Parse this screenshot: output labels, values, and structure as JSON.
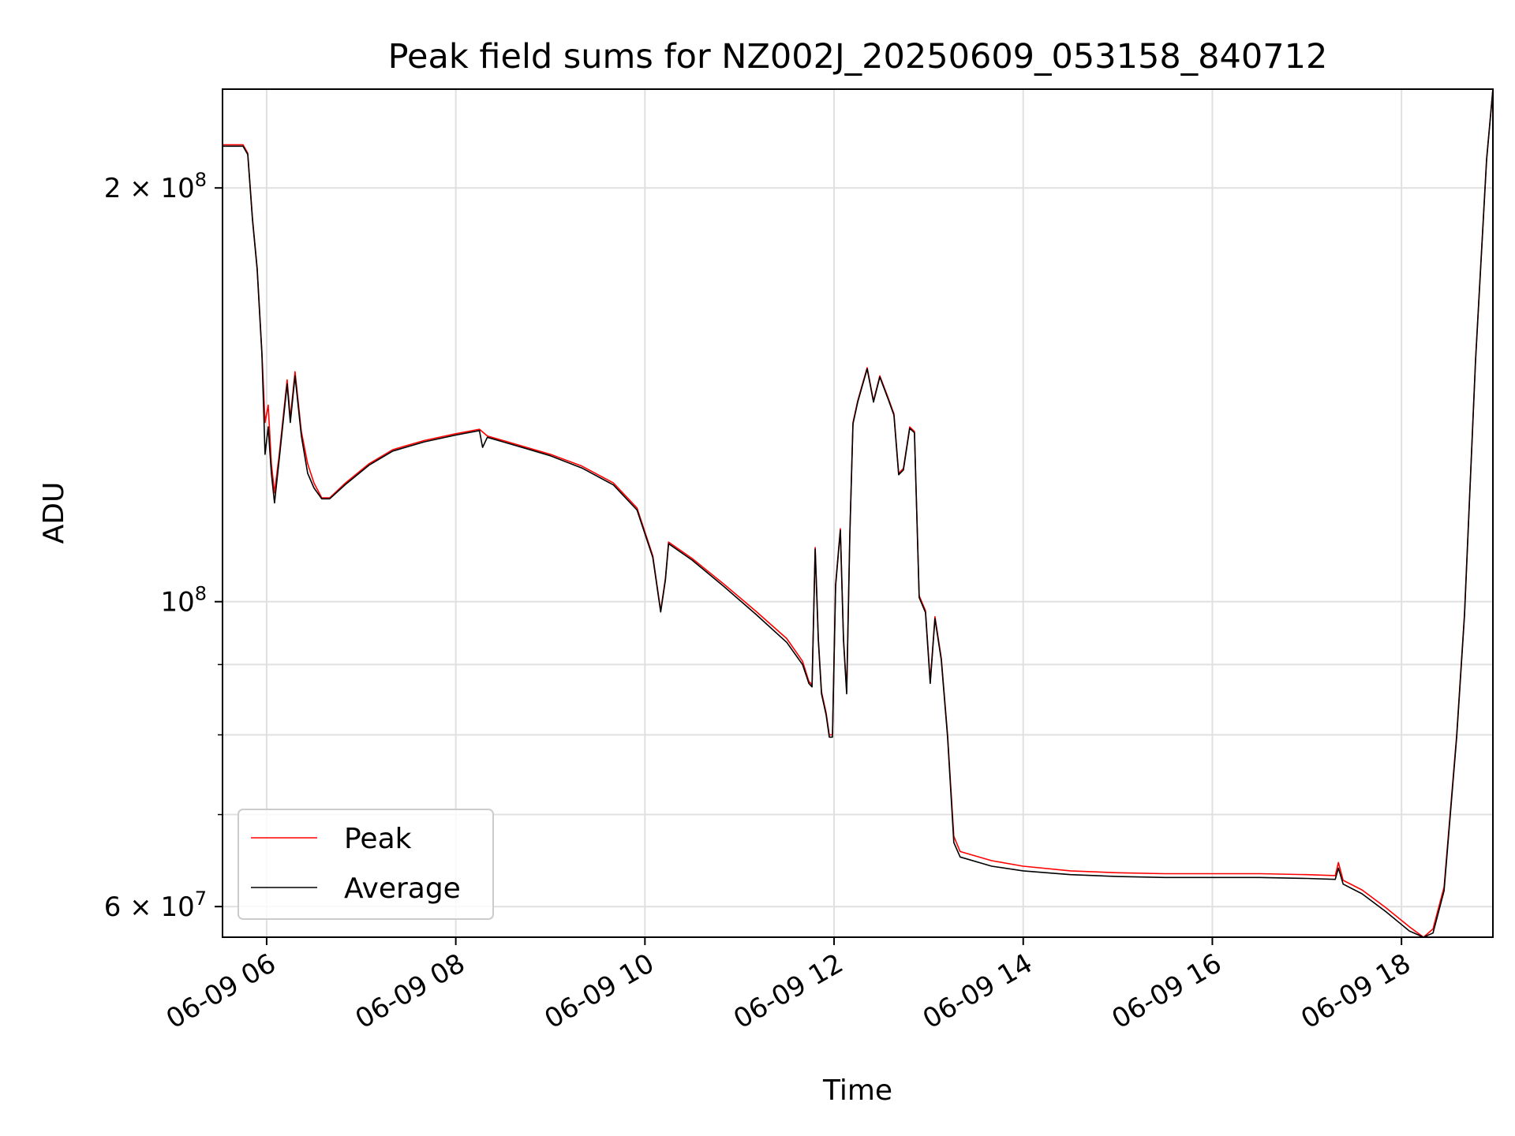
{
  "chart_data": {
    "type": "line",
    "title": "Peak field sums for NZ002J_20250609_053158_840712",
    "xlabel": "Time",
    "ylabel": "ADU",
    "y_scale": "log",
    "grid": true,
    "legend_position": "bottom-left",
    "xlim": [
      "06-09 05:32",
      "06-09 18:58"
    ],
    "ylim": [
      57000000,
      236000000
    ],
    "x_ticks": [
      "06-09 06",
      "06-09 08",
      "06-09 10",
      "06-09 12",
      "06-09 14",
      "06-09 16",
      "06-09 18"
    ],
    "y_ticks": [
      {
        "value": 200000000,
        "base": "2 × 10",
        "exp": "8"
      },
      {
        "value": 100000000,
        "base": "10",
        "exp": "8"
      },
      {
        "value": 60000000,
        "base": "6 × 10",
        "exp": "7"
      }
    ],
    "y_minor_ticks": [
      70000000,
      80000000,
      90000000
    ],
    "series": [
      {
        "name": "Peak",
        "color": "#ff0000",
        "points": [
          [
            "06-09 05:32",
            215000000
          ],
          [
            "06-09 05:45",
            215000000
          ],
          [
            "06-09 05:48",
            212000000
          ],
          [
            "06-09 05:51",
            190000000
          ],
          [
            "06-09 05:54",
            175000000
          ],
          [
            "06-09 05:57",
            152000000
          ],
          [
            "06-09 05:59",
            135000000
          ],
          [
            "06-09 06:01",
            139000000
          ],
          [
            "06-09 06:03",
            126000000
          ],
          [
            "06-09 06:05",
            120000000
          ],
          [
            "06-09 06:08",
            128000000
          ],
          [
            "06-09 06:11",
            138000000
          ],
          [
            "06-09 06:13",
            145000000
          ],
          [
            "06-09 06:15",
            136000000
          ],
          [
            "06-09 06:18",
            147000000
          ],
          [
            "06-09 06:22",
            133000000
          ],
          [
            "06-09 06:26",
            126000000
          ],
          [
            "06-09 06:30",
            122000000
          ],
          [
            "06-09 06:35",
            119000000
          ],
          [
            "06-09 06:40",
            119000000
          ],
          [
            "06-09 06:50",
            122000000
          ],
          [
            "06-09 07:05",
            126000000
          ],
          [
            "06-09 07:20",
            129000000
          ],
          [
            "06-09 07:40",
            131000000
          ],
          [
            "06-09 08:00",
            132500000
          ],
          [
            "06-09 08:15",
            133500000
          ],
          [
            "06-09 08:20",
            132000000
          ],
          [
            "06-09 08:30",
            131000000
          ],
          [
            "06-09 08:45",
            129500000
          ],
          [
            "06-09 09:00",
            128000000
          ],
          [
            "06-09 09:20",
            125500000
          ],
          [
            "06-09 09:40",
            122000000
          ],
          [
            "06-09 09:55",
            117000000
          ],
          [
            "06-09 10:05",
            108000000
          ],
          [
            "06-09 10:10",
            98500000
          ],
          [
            "06-09 10:13",
            104000000
          ],
          [
            "06-09 10:15",
            110500000
          ],
          [
            "06-09 10:30",
            107500000
          ],
          [
            "06-09 10:50",
            103000000
          ],
          [
            "06-09 11:10",
            98500000
          ],
          [
            "06-09 11:30",
            94000000
          ],
          [
            "06-09 11:40",
            90500000
          ],
          [
            "06-09 11:44",
            87500000
          ],
          [
            "06-09 11:46",
            87000000
          ],
          [
            "06-09 11:48",
            109500000
          ],
          [
            "06-09 11:50",
            94000000
          ],
          [
            "06-09 11:52",
            86000000
          ],
          [
            "06-09 11:55",
            83000000
          ],
          [
            "06-09 11:57",
            80000000
          ],
          [
            "06-09 11:59",
            80000000
          ],
          [
            "06-09 12:01",
            103000000
          ],
          [
            "06-09 12:04",
            113000000
          ],
          [
            "06-09 12:06",
            94000000
          ],
          [
            "06-09 12:08",
            86000000
          ],
          [
            "06-09 12:10",
            112000000
          ],
          [
            "06-09 12:12",
            135000000
          ],
          [
            "06-09 12:15",
            140000000
          ],
          [
            "06-09 12:18",
            144000000
          ],
          [
            "06-09 12:21",
            148000000
          ],
          [
            "06-09 12:25",
            140000000
          ],
          [
            "06-09 12:29",
            146000000
          ],
          [
            "06-09 12:34",
            141000000
          ],
          [
            "06-09 12:38",
            137000000
          ],
          [
            "06-09 12:41",
            124000000
          ],
          [
            "06-09 12:44",
            125000000
          ],
          [
            "06-09 12:48",
            134000000
          ],
          [
            "06-09 12:51",
            133000000
          ],
          [
            "06-09 12:54",
            101000000
          ],
          [
            "06-09 12:58",
            98500000
          ],
          [
            "06-09 13:01",
            87500000
          ],
          [
            "06-09 13:04",
            97500000
          ],
          [
            "06-09 13:08",
            91000000
          ],
          [
            "06-09 13:12",
            80000000
          ],
          [
            "06-09 13:16",
            67500000
          ],
          [
            "06-09 13:20",
            65800000
          ],
          [
            "06-09 13:40",
            64800000
          ],
          [
            "06-09 14:00",
            64200000
          ],
          [
            "06-09 14:30",
            63700000
          ],
          [
            "06-09 15:00",
            63500000
          ],
          [
            "06-09 15:30",
            63400000
          ],
          [
            "06-09 16:00",
            63400000
          ],
          [
            "06-09 16:30",
            63400000
          ],
          [
            "06-09 17:00",
            63300000
          ],
          [
            "06-09 17:18",
            63200000
          ],
          [
            "06-09 17:20",
            64600000
          ],
          [
            "06-09 17:23",
            62700000
          ],
          [
            "06-09 17:35",
            61700000
          ],
          [
            "06-09 17:50",
            59900000
          ],
          [
            "06-09 18:05",
            58000000
          ],
          [
            "06-09 18:14",
            56900000
          ],
          [
            "06-09 18:20",
            57800000
          ],
          [
            "06-09 18:27",
            62000000
          ],
          [
            "06-09 18:35",
            80000000
          ],
          [
            "06-09 18:40",
            98000000
          ],
          [
            "06-09 18:47",
            150000000
          ],
          [
            "06-09 18:54",
            210000000
          ],
          [
            "06-09 18:58",
            236000000
          ]
        ]
      },
      {
        "name": "Average",
        "color": "#000000",
        "points": [
          [
            "06-09 05:32",
            214500000
          ],
          [
            "06-09 05:45",
            214500000
          ],
          [
            "06-09 05:48",
            211500000
          ],
          [
            "06-09 05:51",
            189500000
          ],
          [
            "06-09 05:54",
            174500000
          ],
          [
            "06-09 05:57",
            151500000
          ],
          [
            "06-09 05:59",
            128000000
          ],
          [
            "06-09 06:01",
            134000000
          ],
          [
            "06-09 06:03",
            124000000
          ],
          [
            "06-09 06:05",
            118000000
          ],
          [
            "06-09 06:08",
            127000000
          ],
          [
            "06-09 06:11",
            137000000
          ],
          [
            "06-09 06:13",
            144000000
          ],
          [
            "06-09 06:15",
            135000000
          ],
          [
            "06-09 06:18",
            146000000
          ],
          [
            "06-09 06:22",
            132000000
          ],
          [
            "06-09 06:26",
            124000000
          ],
          [
            "06-09 06:30",
            121000000
          ],
          [
            "06-09 06:35",
            118800000
          ],
          [
            "06-09 06:40",
            118800000
          ],
          [
            "06-09 06:50",
            121700000
          ],
          [
            "06-09 07:05",
            125700000
          ],
          [
            "06-09 07:20",
            128700000
          ],
          [
            "06-09 07:40",
            130700000
          ],
          [
            "06-09 08:00",
            132200000
          ],
          [
            "06-09 08:15",
            133200000
          ],
          [
            "06-09 08:17",
            129500000
          ],
          [
            "06-09 08:20",
            131700000
          ],
          [
            "06-09 08:30",
            130700000
          ],
          [
            "06-09 08:45",
            129200000
          ],
          [
            "06-09 09:00",
            127700000
          ],
          [
            "06-09 09:20",
            125100000
          ],
          [
            "06-09 09:40",
            121600000
          ],
          [
            "06-09 09:55",
            116600000
          ],
          [
            "06-09 10:05",
            107700000
          ],
          [
            "06-09 10:10",
            98300000
          ],
          [
            "06-09 10:13",
            103700000
          ],
          [
            "06-09 10:15",
            110200000
          ],
          [
            "06-09 10:30",
            107200000
          ],
          [
            "06-09 10:50",
            102600000
          ],
          [
            "06-09 11:10",
            98000000
          ],
          [
            "06-09 11:30",
            93400000
          ],
          [
            "06-09 11:40",
            90000000
          ],
          [
            "06-09 11:44",
            87200000
          ],
          [
            "06-09 11:46",
            86700000
          ],
          [
            "06-09 11:48",
            109200000
          ],
          [
            "06-09 11:50",
            93700000
          ],
          [
            "06-09 11:52",
            85700000
          ],
          [
            "06-09 11:55",
            82700000
          ],
          [
            "06-09 11:57",
            79700000
          ],
          [
            "06-09 11:59",
            79700000
          ],
          [
            "06-09 12:01",
            102700000
          ],
          [
            "06-09 12:04",
            112700000
          ],
          [
            "06-09 12:06",
            93700000
          ],
          [
            "06-09 12:08",
            85700000
          ],
          [
            "06-09 12:10",
            111700000
          ],
          [
            "06-09 12:12",
            134700000
          ],
          [
            "06-09 12:15",
            139700000
          ],
          [
            "06-09 12:18",
            143700000
          ],
          [
            "06-09 12:21",
            147700000
          ],
          [
            "06-09 12:25",
            139700000
          ],
          [
            "06-09 12:29",
            145700000
          ],
          [
            "06-09 12:34",
            140700000
          ],
          [
            "06-09 12:38",
            136700000
          ],
          [
            "06-09 12:41",
            123700000
          ],
          [
            "06-09 12:44",
            124700000
          ],
          [
            "06-09 12:48",
            133700000
          ],
          [
            "06-09 12:51",
            132700000
          ],
          [
            "06-09 12:54",
            100700000
          ],
          [
            "06-09 12:58",
            98200000
          ],
          [
            "06-09 13:01",
            87200000
          ],
          [
            "06-09 13:04",
            97200000
          ],
          [
            "06-09 13:08",
            90700000
          ],
          [
            "06-09 13:12",
            79700000
          ],
          [
            "06-09 13:16",
            66800000
          ],
          [
            "06-09 13:20",
            65200000
          ],
          [
            "06-09 13:40",
            64200000
          ],
          [
            "06-09 14:00",
            63700000
          ],
          [
            "06-09 14:30",
            63300000
          ],
          [
            "06-09 15:00",
            63100000
          ],
          [
            "06-09 15:30",
            63000000
          ],
          [
            "06-09 16:00",
            63000000
          ],
          [
            "06-09 16:30",
            63000000
          ],
          [
            "06-09 17:00",
            62900000
          ],
          [
            "06-09 17:18",
            62800000
          ],
          [
            "06-09 17:20",
            64000000
          ],
          [
            "06-09 17:23",
            62300000
          ],
          [
            "06-09 17:35",
            61300000
          ],
          [
            "06-09 17:50",
            59500000
          ],
          [
            "06-09 18:05",
            57600000
          ],
          [
            "06-09 18:14",
            56500000
          ],
          [
            "06-09 18:20",
            57400000
          ],
          [
            "06-09 18:27",
            61600000
          ],
          [
            "06-09 18:35",
            79700000
          ],
          [
            "06-09 18:40",
            97700000
          ],
          [
            "06-09 18:47",
            149700000
          ],
          [
            "06-09 18:54",
            209500000
          ],
          [
            "06-09 18:58",
            236000000
          ]
        ]
      }
    ]
  }
}
